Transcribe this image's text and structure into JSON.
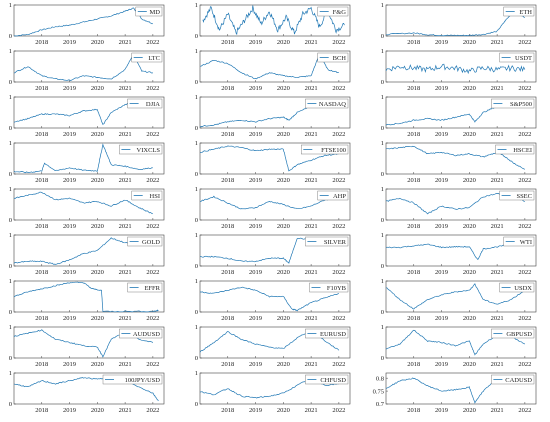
{
  "chart_data": {
    "type": "line",
    "layout": "grid",
    "grid_rows": 9,
    "grid_cols": 3,
    "line_color": "#1f77b4",
    "x_ticks": [
      "2018",
      "2019",
      "2020",
      "2021",
      "2022"
    ],
    "x_range": [
      2017.0,
      2022.4
    ],
    "ylim": [
      0,
      1
    ],
    "panels": [
      {
        "name": "MD",
        "y_ticks": [
          "0",
          "1"
        ],
        "x": [
          2017.0,
          2017.5,
          2018.0,
          2018.5,
          2019.0,
          2019.5,
          2020.0,
          2020.5,
          2021.0,
          2021.3,
          2021.6,
          2022.0
        ],
        "y": [
          0.0,
          0.05,
          0.2,
          0.3,
          0.35,
          0.45,
          0.55,
          0.65,
          0.8,
          0.9,
          0.55,
          0.4
        ]
      },
      {
        "name": "F&G",
        "y_ticks": [
          "0",
          "1"
        ],
        "x": [
          2017.1,
          2017.4,
          2017.7,
          2018.0,
          2018.3,
          2018.6,
          2018.9,
          2019.2,
          2019.5,
          2019.8,
          2020.1,
          2020.4,
          2020.7,
          2021.0,
          2021.3,
          2021.6,
          2021.9,
          2022.2
        ],
        "y": [
          0.5,
          0.9,
          0.2,
          0.7,
          0.1,
          0.5,
          0.9,
          0.4,
          0.8,
          0.2,
          0.6,
          0.1,
          0.7,
          0.9,
          0.3,
          0.8,
          0.2,
          0.35
        ]
      },
      {
        "name": "ETH",
        "y_ticks": [
          "0",
          "1"
        ],
        "x": [
          2017.0,
          2018.0,
          2018.5,
          2019.0,
          2019.5,
          2020.0,
          2020.5,
          2021.0,
          2021.3,
          2021.6,
          2022.0
        ],
        "y": [
          0.05,
          0.1,
          0.04,
          0.02,
          0.02,
          0.02,
          0.05,
          0.15,
          0.5,
          0.8,
          0.6
        ]
      },
      {
        "name": "LTC",
        "y_ticks": [
          "0",
          "1"
        ],
        "x": [
          2017.0,
          2017.5,
          2018.0,
          2018.5,
          2019.0,
          2019.5,
          2020.0,
          2020.5,
          2021.0,
          2021.3,
          2021.6,
          2022.0
        ],
        "y": [
          0.3,
          0.5,
          0.2,
          0.1,
          0.05,
          0.2,
          0.15,
          0.1,
          0.4,
          0.9,
          0.35,
          0.3
        ]
      },
      {
        "name": "BCH",
        "y_ticks": [
          "0",
          "1"
        ],
        "x": [
          2017.0,
          2017.5,
          2018.0,
          2018.5,
          2019.0,
          2019.5,
          2020.0,
          2020.5,
          2021.0,
          2021.3,
          2021.6,
          2022.0
        ],
        "y": [
          0.5,
          0.7,
          0.6,
          0.3,
          0.1,
          0.3,
          0.2,
          0.15,
          0.2,
          0.9,
          0.4,
          0.3
        ]
      },
      {
        "name": "USDT",
        "y_ticks": [
          "0",
          "1"
        ],
        "x": [
          2017.0,
          2017.5,
          2018.0,
          2018.5,
          2019.0,
          2019.5,
          2020.0,
          2020.5,
          2021.0,
          2021.5,
          2022.0
        ],
        "y": [
          0.4,
          0.5,
          0.45,
          0.4,
          0.5,
          0.45,
          0.35,
          0.45,
          0.4,
          0.45,
          0.4
        ]
      },
      {
        "name": "DJIA",
        "y_ticks": [
          "0",
          "1"
        ],
        "x": [
          2017.0,
          2017.5,
          2018.0,
          2018.5,
          2019.0,
          2019.5,
          2020.0,
          2020.2,
          2020.5,
          2021.0,
          2021.5,
          2022.0
        ],
        "y": [
          0.2,
          0.3,
          0.45,
          0.45,
          0.4,
          0.55,
          0.6,
          0.1,
          0.5,
          0.75,
          0.9,
          0.85
        ]
      },
      {
        "name": "NASDAQ",
        "y_ticks": [
          "0",
          "1"
        ],
        "x": [
          2017.0,
          2017.5,
          2018.0,
          2018.5,
          2019.0,
          2019.5,
          2020.0,
          2020.2,
          2020.5,
          2021.0,
          2021.5,
          2022.0
        ],
        "y": [
          0.05,
          0.1,
          0.2,
          0.25,
          0.2,
          0.3,
          0.35,
          0.25,
          0.5,
          0.7,
          0.85,
          0.7
        ]
      },
      {
        "name": "S&P500",
        "y_ticks": [
          "0",
          "1"
        ],
        "x": [
          2017.0,
          2017.5,
          2018.0,
          2018.5,
          2019.0,
          2019.5,
          2020.0,
          2020.2,
          2020.5,
          2021.0,
          2021.5,
          2022.0
        ],
        "y": [
          0.1,
          0.15,
          0.25,
          0.3,
          0.25,
          0.35,
          0.45,
          0.2,
          0.5,
          0.7,
          0.9,
          0.85
        ]
      },
      {
        "name": "VIXCLS",
        "y_ticks": [
          "0",
          "1"
        ],
        "x": [
          2017.0,
          2017.5,
          2018.0,
          2018.1,
          2018.5,
          2019.0,
          2019.5,
          2020.0,
          2020.2,
          2020.5,
          2021.0,
          2021.5,
          2022.0
        ],
        "y": [
          0.08,
          0.05,
          0.1,
          0.35,
          0.1,
          0.2,
          0.12,
          0.1,
          0.95,
          0.3,
          0.25,
          0.15,
          0.2
        ]
      },
      {
        "name": "FTSE100",
        "y_ticks": [
          "0",
          "1"
        ],
        "x": [
          2017.0,
          2017.5,
          2018.0,
          2018.5,
          2019.0,
          2019.5,
          2020.0,
          2020.2,
          2020.5,
          2021.0,
          2021.5,
          2022.0
        ],
        "y": [
          0.7,
          0.8,
          0.9,
          0.85,
          0.75,
          0.8,
          0.8,
          0.1,
          0.3,
          0.45,
          0.6,
          0.65
        ]
      },
      {
        "name": "HSCEI",
        "y_ticks": [
          "0",
          "1"
        ],
        "x": [
          2017.0,
          2017.5,
          2018.0,
          2018.5,
          2019.0,
          2019.5,
          2020.0,
          2020.5,
          2021.0,
          2021.3,
          2021.6,
          2022.0
        ],
        "y": [
          0.8,
          0.85,
          0.9,
          0.65,
          0.7,
          0.6,
          0.65,
          0.55,
          0.7,
          0.55,
          0.35,
          0.15
        ]
      },
      {
        "name": "HSI",
        "y_ticks": [
          "0",
          "1"
        ],
        "x": [
          2017.0,
          2017.5,
          2018.0,
          2018.5,
          2019.0,
          2019.5,
          2020.0,
          2020.5,
          2021.0,
          2021.5,
          2022.0
        ],
        "y": [
          0.7,
          0.8,
          0.9,
          0.65,
          0.7,
          0.55,
          0.6,
          0.45,
          0.65,
          0.4,
          0.2
        ]
      },
      {
        "name": "AHP",
        "y_ticks": [
          "0",
          "1"
        ],
        "x": [
          2017.0,
          2017.5,
          2018.0,
          2018.5,
          2019.0,
          2019.5,
          2020.0,
          2020.5,
          2021.0,
          2021.5,
          2022.0
        ],
        "y": [
          0.6,
          0.75,
          0.55,
          0.35,
          0.4,
          0.6,
          0.5,
          0.35,
          0.45,
          0.65,
          0.7
        ]
      },
      {
        "name": "SSEC",
        "y_ticks": [
          "0",
          "1"
        ],
        "x": [
          2017.0,
          2017.5,
          2018.0,
          2018.5,
          2019.0,
          2019.5,
          2020.0,
          2020.5,
          2021.0,
          2021.5,
          2022.0
        ],
        "y": [
          0.6,
          0.7,
          0.55,
          0.2,
          0.45,
          0.35,
          0.4,
          0.75,
          0.85,
          0.8,
          0.6
        ]
      },
      {
        "name": "GOLD",
        "y_ticks": [
          "0",
          "1"
        ],
        "x": [
          2017.0,
          2017.5,
          2018.0,
          2018.5,
          2019.0,
          2019.5,
          2020.0,
          2020.5,
          2021.0,
          2021.5,
          2022.0
        ],
        "y": [
          0.1,
          0.15,
          0.15,
          0.05,
          0.2,
          0.4,
          0.5,
          0.9,
          0.75,
          0.7,
          0.8
        ]
      },
      {
        "name": "SILVER",
        "y_ticks": [
          "0",
          "1"
        ],
        "x": [
          2017.0,
          2017.5,
          2018.0,
          2018.5,
          2019.0,
          2019.5,
          2020.0,
          2020.2,
          2020.5,
          2021.0,
          2021.5,
          2022.0
        ],
        "y": [
          0.3,
          0.3,
          0.25,
          0.15,
          0.15,
          0.25,
          0.25,
          0.1,
          0.9,
          0.85,
          0.75,
          0.7
        ]
      },
      {
        "name": "WTI",
        "y_ticks": [
          "0",
          "1"
        ],
        "x": [
          2017.0,
          2017.5,
          2018.0,
          2018.5,
          2019.0,
          2019.5,
          2020.0,
          2020.3,
          2020.5,
          2021.0,
          2021.5,
          2022.0
        ],
        "y": [
          0.6,
          0.6,
          0.65,
          0.7,
          0.6,
          0.62,
          0.62,
          0.2,
          0.55,
          0.62,
          0.7,
          0.75
        ]
      },
      {
        "name": "EFFR",
        "y_ticks": [
          "0",
          "1"
        ],
        "x": [
          2017.0,
          2017.5,
          2018.0,
          2018.5,
          2019.0,
          2019.5,
          2019.8,
          2020.15,
          2020.2,
          2021.0,
          2022.0,
          2022.2
        ],
        "y": [
          0.5,
          0.65,
          0.75,
          0.85,
          0.95,
          0.95,
          0.75,
          0.7,
          0.02,
          0.02,
          0.02,
          0.05
        ]
      },
      {
        "name": "F10YB",
        "y_ticks": [
          "0",
          "1"
        ],
        "x": [
          2017.0,
          2017.5,
          2018.0,
          2018.5,
          2019.0,
          2019.5,
          2020.0,
          2020.3,
          2020.5,
          2021.0,
          2021.5,
          2022.0
        ],
        "y": [
          0.65,
          0.6,
          0.7,
          0.8,
          0.7,
          0.5,
          0.5,
          0.1,
          0.05,
          0.3,
          0.45,
          0.6
        ]
      },
      {
        "name": "USDX",
        "y_ticks": [
          "0",
          "1"
        ],
        "x": [
          2017.0,
          2017.5,
          2018.0,
          2018.5,
          2019.0,
          2019.5,
          2020.0,
          2020.2,
          2020.5,
          2021.0,
          2021.5,
          2022.0
        ],
        "y": [
          0.8,
          0.4,
          0.1,
          0.4,
          0.55,
          0.65,
          0.7,
          0.9,
          0.4,
          0.25,
          0.4,
          0.7
        ]
      },
      {
        "name": "AUDUSD",
        "y_ticks": [
          "0",
          "1"
        ],
        "x": [
          2017.0,
          2017.5,
          2018.0,
          2018.5,
          2019.0,
          2019.5,
          2020.0,
          2020.2,
          2020.5,
          2021.0,
          2021.5,
          2022.0
        ],
        "y": [
          0.7,
          0.8,
          0.9,
          0.6,
          0.5,
          0.4,
          0.35,
          0.05,
          0.6,
          0.85,
          0.6,
          0.5
        ]
      },
      {
        "name": "EURUSD",
        "y_ticks": [
          "0",
          "1"
        ],
        "x": [
          2017.0,
          2017.5,
          2018.0,
          2018.5,
          2019.0,
          2019.5,
          2020.0,
          2020.5,
          2021.0,
          2021.5,
          2022.0
        ],
        "y": [
          0.2,
          0.5,
          0.85,
          0.6,
          0.45,
          0.35,
          0.3,
          0.65,
          0.9,
          0.55,
          0.25
        ]
      },
      {
        "name": "GBPUSD",
        "y_ticks": [
          "0",
          "1"
        ],
        "x": [
          2017.0,
          2017.5,
          2018.0,
          2018.5,
          2019.0,
          2019.5,
          2020.0,
          2020.2,
          2020.5,
          2021.0,
          2021.5,
          2022.0
        ],
        "y": [
          0.3,
          0.45,
          0.9,
          0.55,
          0.5,
          0.4,
          0.55,
          0.1,
          0.45,
          0.75,
          0.7,
          0.45
        ]
      },
      {
        "name": "100JPY/USD",
        "y_ticks": [
          "0",
          "1"
        ],
        "x": [
          2017.0,
          2017.5,
          2018.0,
          2018.5,
          2019.0,
          2019.5,
          2020.0,
          2020.5,
          2021.0,
          2021.5,
          2022.0,
          2022.2
        ],
        "y": [
          0.65,
          0.55,
          0.75,
          0.65,
          0.75,
          0.85,
          0.8,
          0.85,
          0.75,
          0.55,
          0.35,
          0.1
        ]
      },
      {
        "name": "CHFUSD",
        "y_ticks": [
          "0",
          "1"
        ],
        "x": [
          2017.0,
          2017.5,
          2018.0,
          2018.5,
          2019.0,
          2019.5,
          2020.0,
          2020.5,
          2021.0,
          2021.5,
          2022.0
        ],
        "y": [
          0.4,
          0.3,
          0.5,
          0.25,
          0.2,
          0.25,
          0.35,
          0.6,
          0.85,
          0.6,
          0.65
        ]
      },
      {
        "name": "CADUSD",
        "y_ticks": [
          "0.7",
          "0.75",
          "0.8"
        ],
        "ylim": [
          0.7,
          0.82
        ],
        "x": [
          2017.0,
          2017.5,
          2018.0,
          2018.5,
          2019.0,
          2019.5,
          2020.0,
          2020.2,
          2020.5,
          2021.0,
          2021.5,
          2022.0
        ],
        "y": [
          0.76,
          0.79,
          0.8,
          0.77,
          0.75,
          0.755,
          0.765,
          0.705,
          0.75,
          0.8,
          0.79,
          0.79
        ]
      }
    ]
  }
}
